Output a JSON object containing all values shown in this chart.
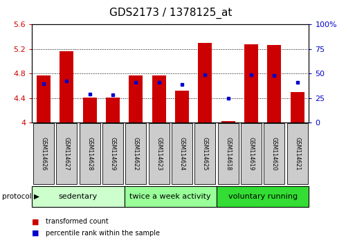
{
  "title": "GDS2173 / 1378125_at",
  "samples": [
    "GSM114626",
    "GSM114627",
    "GSM114628",
    "GSM114629",
    "GSM114622",
    "GSM114623",
    "GSM114624",
    "GSM114625",
    "GSM114618",
    "GSM114619",
    "GSM114620",
    "GSM114621"
  ],
  "bar_tops": [
    4.77,
    5.16,
    4.41,
    4.41,
    4.77,
    4.77,
    4.52,
    5.3,
    4.02,
    5.28,
    5.26,
    4.5
  ],
  "bar_bottom": 4.0,
  "percentile_vals": [
    4.63,
    4.68,
    4.46,
    4.45,
    4.65,
    4.65,
    4.62,
    4.78,
    4.4,
    4.78,
    4.77,
    4.65
  ],
  "ylim": [
    4.0,
    5.6
  ],
  "yticks_left": [
    4.0,
    4.4,
    4.8,
    5.2,
    5.6
  ],
  "yticks_right": [
    0,
    25,
    50,
    75,
    100
  ],
  "ytick_labels_right": [
    "0",
    "25",
    "50",
    "75",
    "100%"
  ],
  "bar_color": "#cc0000",
  "blue_color": "#0000cc",
  "groups": [
    {
      "label": "sedentary",
      "indices": [
        0,
        1,
        2,
        3
      ],
      "color": "#ccffcc"
    },
    {
      "label": "twice a week activity",
      "indices": [
        4,
        5,
        6,
        7
      ],
      "color": "#99ff99"
    },
    {
      "label": "voluntary running",
      "indices": [
        8,
        9,
        10,
        11
      ],
      "color": "#33dd33"
    }
  ],
  "protocol_label": "protocol",
  "legend_red_label": "transformed count",
  "legend_blue_label": "percentile rank within the sample",
  "tick_fontsize": 8,
  "label_color_left": "#cc0000",
  "label_color_right": "#0000cc",
  "title_fontsize": 11,
  "sample_box_color": "#cccccc"
}
